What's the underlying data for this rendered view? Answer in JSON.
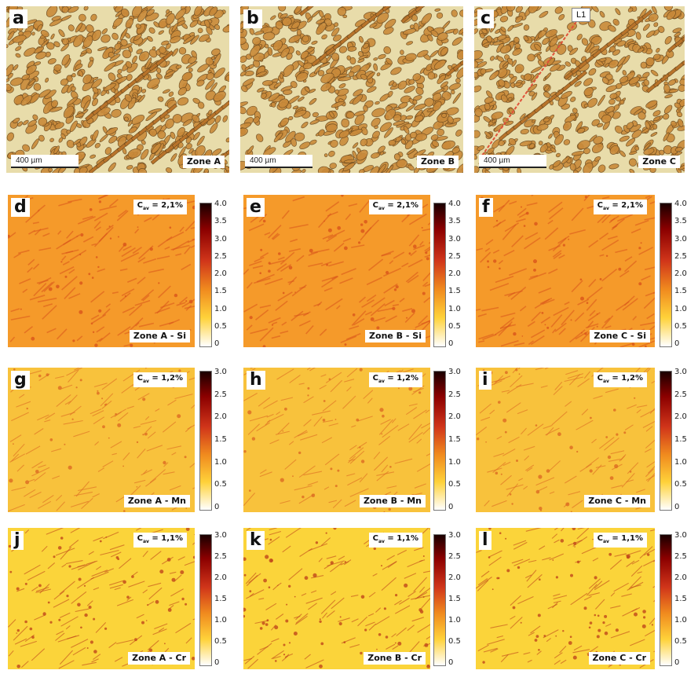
{
  "micrographs": [
    {
      "letter": "a",
      "zone": "Zone A",
      "scale": "400 µm"
    },
    {
      "letter": "b",
      "zone": "Zone B",
      "scale": "400 µm"
    },
    {
      "letter": "c",
      "zone": "Zone C",
      "scale": "400 µm",
      "marker": "L1"
    }
  ],
  "maps": [
    {
      "letter": "d",
      "label": "Zone A - Si",
      "cav": "2,1%",
      "ticks": [
        "4.0",
        "3.5",
        "3.0",
        "2.5",
        "2.0",
        "1.5",
        "1.0",
        "0.5",
        "0"
      ]
    },
    {
      "letter": "e",
      "label": "Zone B - Si",
      "cav": "2,1%",
      "ticks": [
        "4.0",
        "3.5",
        "3.0",
        "2.5",
        "2.0",
        "1.5",
        "1.0",
        "0.5",
        "0"
      ]
    },
    {
      "letter": "f",
      "label": "Zone C - Si",
      "cav": "2,1%",
      "ticks": [
        "4.0",
        "3.5",
        "3.0",
        "2.5",
        "2.0",
        "1.5",
        "1.0",
        "0.5",
        "0"
      ]
    },
    {
      "letter": "g",
      "label": "Zone A - Mn",
      "cav": "1,2%",
      "ticks": [
        "3.0",
        "2.5",
        "2.0",
        "1.5",
        "1.0",
        "0.5",
        "0"
      ]
    },
    {
      "letter": "h",
      "label": "Zone B - Mn",
      "cav": "1,2%",
      "ticks": [
        "3.0",
        "2.5",
        "2.0",
        "1.5",
        "1.0",
        "0.5",
        "0"
      ]
    },
    {
      "letter": "i",
      "label": "Zone C - Mn",
      "cav": "1,2%",
      "ticks": [
        "3.0",
        "2.5",
        "2.0",
        "1.5",
        "1.0",
        "0.5",
        "0"
      ]
    },
    {
      "letter": "j",
      "label": "Zone A - Cr",
      "cav": "1,1%",
      "ticks": [
        "3.0",
        "2.5",
        "2.0",
        "1.5",
        "1.0",
        "0.5",
        "0"
      ]
    },
    {
      "letter": "k",
      "label": "Zone B - Cr",
      "cav": "1,1%",
      "ticks": [
        "3.0",
        "2.5",
        "2.0",
        "1.5",
        "1.0",
        "0.5",
        "0"
      ]
    },
    {
      "letter": "l",
      "label": "Zone C - Cr",
      "cav": "1,1%",
      "ticks": [
        "3.0",
        "2.5",
        "2.0",
        "1.5",
        "1.0",
        "0.5",
        "0"
      ]
    }
  ],
  "cav_prefix": "C",
  "cav_sub": "av",
  "cav_eq": " = ",
  "colors": {
    "micro_bg": "#e8dcaa",
    "micro_grain": "#c98a3a",
    "micro_edge": "#6d4a1e",
    "si_bg": "#f59a2a",
    "si_seg": "#d9541a",
    "mnf_bg": "#f8c23c",
    "mnf_seg": "#dc6a22",
    "cr_bg": "#fbd43a",
    "cr_seg": "#c0461a",
    "marker_line": "#e0523a"
  }
}
